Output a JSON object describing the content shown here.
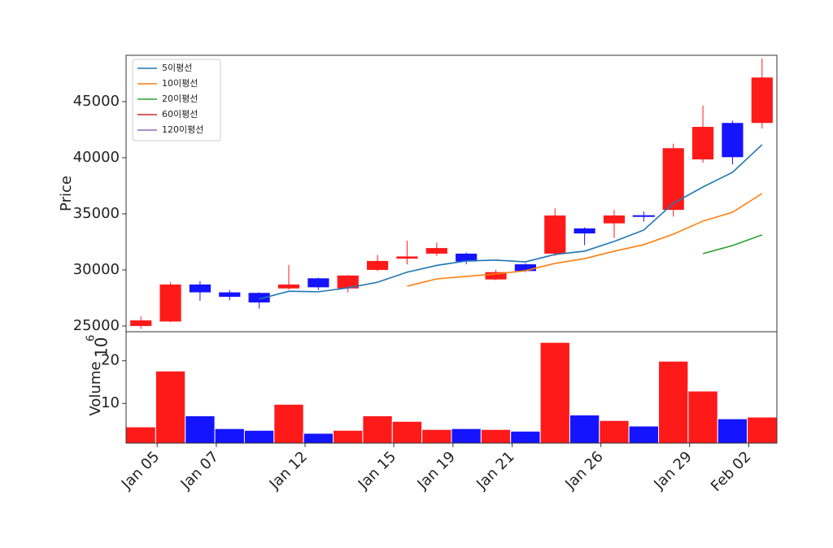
{
  "chart_data": {
    "type": "candlestick",
    "categories": [
      "Jan 05",
      null,
      "Jan 07",
      null,
      null,
      "Jan 12",
      null,
      null,
      "Jan 15",
      null,
      "Jan 19",
      null,
      "Jan 21",
      null,
      null,
      "Jan 26",
      null,
      null,
      "Jan 29",
      null,
      "Feb 02",
      null
    ],
    "open": [
      25000,
      25400,
      28700,
      28000,
      27950,
      28350,
      29250,
      28350,
      30000,
      31000,
      31450,
      31450,
      29150,
      30500,
      31450,
      33700,
      34150,
      34800,
      35350,
      39850,
      43100,
      43100
    ],
    "high": [
      25850,
      28900,
      29000,
      28200,
      28000,
      30450,
      29300,
      29550,
      31350,
      32600,
      32450,
      31550,
      30000,
      30600,
      35500,
      33800,
      35350,
      35200,
      41250,
      44650,
      43300,
      48850
    ],
    "low": [
      24750,
      25350,
      27250,
      27300,
      26550,
      28250,
      28200,
      28000,
      29900,
      30500,
      31250,
      30500,
      29100,
      29800,
      31250,
      32200,
      32850,
      34300,
      34750,
      39550,
      39400,
      42600
    ],
    "close": [
      25500,
      28700,
      28000,
      27600,
      27100,
      28700,
      28450,
      29500,
      30800,
      31200,
      31950,
      30750,
      29800,
      29900,
      34850,
      33250,
      34850,
      34800,
      40850,
      42750,
      40050,
      47150
    ],
    "up_color": "#ff1a1a",
    "down_color": "#1414ff",
    "ylabel": "Price",
    "ylim": [
      24490,
      49130
    ],
    "yticks": [
      25000,
      30000,
      35000,
      40000,
      45000
    ],
    "legend": "upper left",
    "series": [
      {
        "name": "5이평선",
        "color": "#1f77b4",
        "values": [
          null,
          null,
          null,
          null,
          27400,
          28100,
          28050,
          28400,
          28900,
          29800,
          30400,
          30800,
          30870,
          30720,
          31380,
          31670,
          32540,
          33550,
          35940,
          37390,
          38700,
          41160
        ]
      },
      {
        "name": "10이평선",
        "color": "#ff7f0e",
        "values": [
          null,
          null,
          null,
          null,
          null,
          null,
          null,
          null,
          null,
          28550,
          29200,
          29420,
          29640,
          29930,
          30580,
          31010,
          31670,
          32250,
          33190,
          34350,
          35140,
          36810
        ]
      },
      {
        "name": "20이평선",
        "color": "#2ca02c",
        "values": [
          null,
          null,
          null,
          null,
          null,
          null,
          null,
          null,
          null,
          null,
          null,
          null,
          null,
          null,
          null,
          null,
          null,
          null,
          null,
          31450,
          32170,
          33120
        ]
      },
      {
        "name": "60이평선",
        "color": "#d62728",
        "values": [
          null,
          null,
          null,
          null,
          null,
          null,
          null,
          null,
          null,
          null,
          null,
          null,
          null,
          null,
          null,
          null,
          null,
          null,
          null,
          null,
          null,
          null
        ]
      },
      {
        "name": "120이평선",
        "color": "#9467bd",
        "values": [
          null,
          null,
          null,
          null,
          null,
          null,
          null,
          null,
          null,
          null,
          null,
          null,
          null,
          null,
          null,
          null,
          null,
          null,
          null,
          null,
          null,
          null
        ]
      }
    ],
    "volume": {
      "ylabel": "Volume",
      "offset_label": {
        "base": "10",
        "exponent": "6"
      },
      "values": [
        4.5,
        17.6,
        7.1,
        4.1,
        3.7,
        9.8,
        3.0,
        3.7,
        7.1,
        5.8,
        3.9,
        4.1,
        3.9,
        3.5,
        24.3,
        7.3,
        6.0,
        4.7,
        19.9,
        12.9,
        6.4,
        6.8
      ],
      "ylim": [
        0.7,
        26.8
      ],
      "yticks": [
        10,
        20
      ]
    }
  }
}
